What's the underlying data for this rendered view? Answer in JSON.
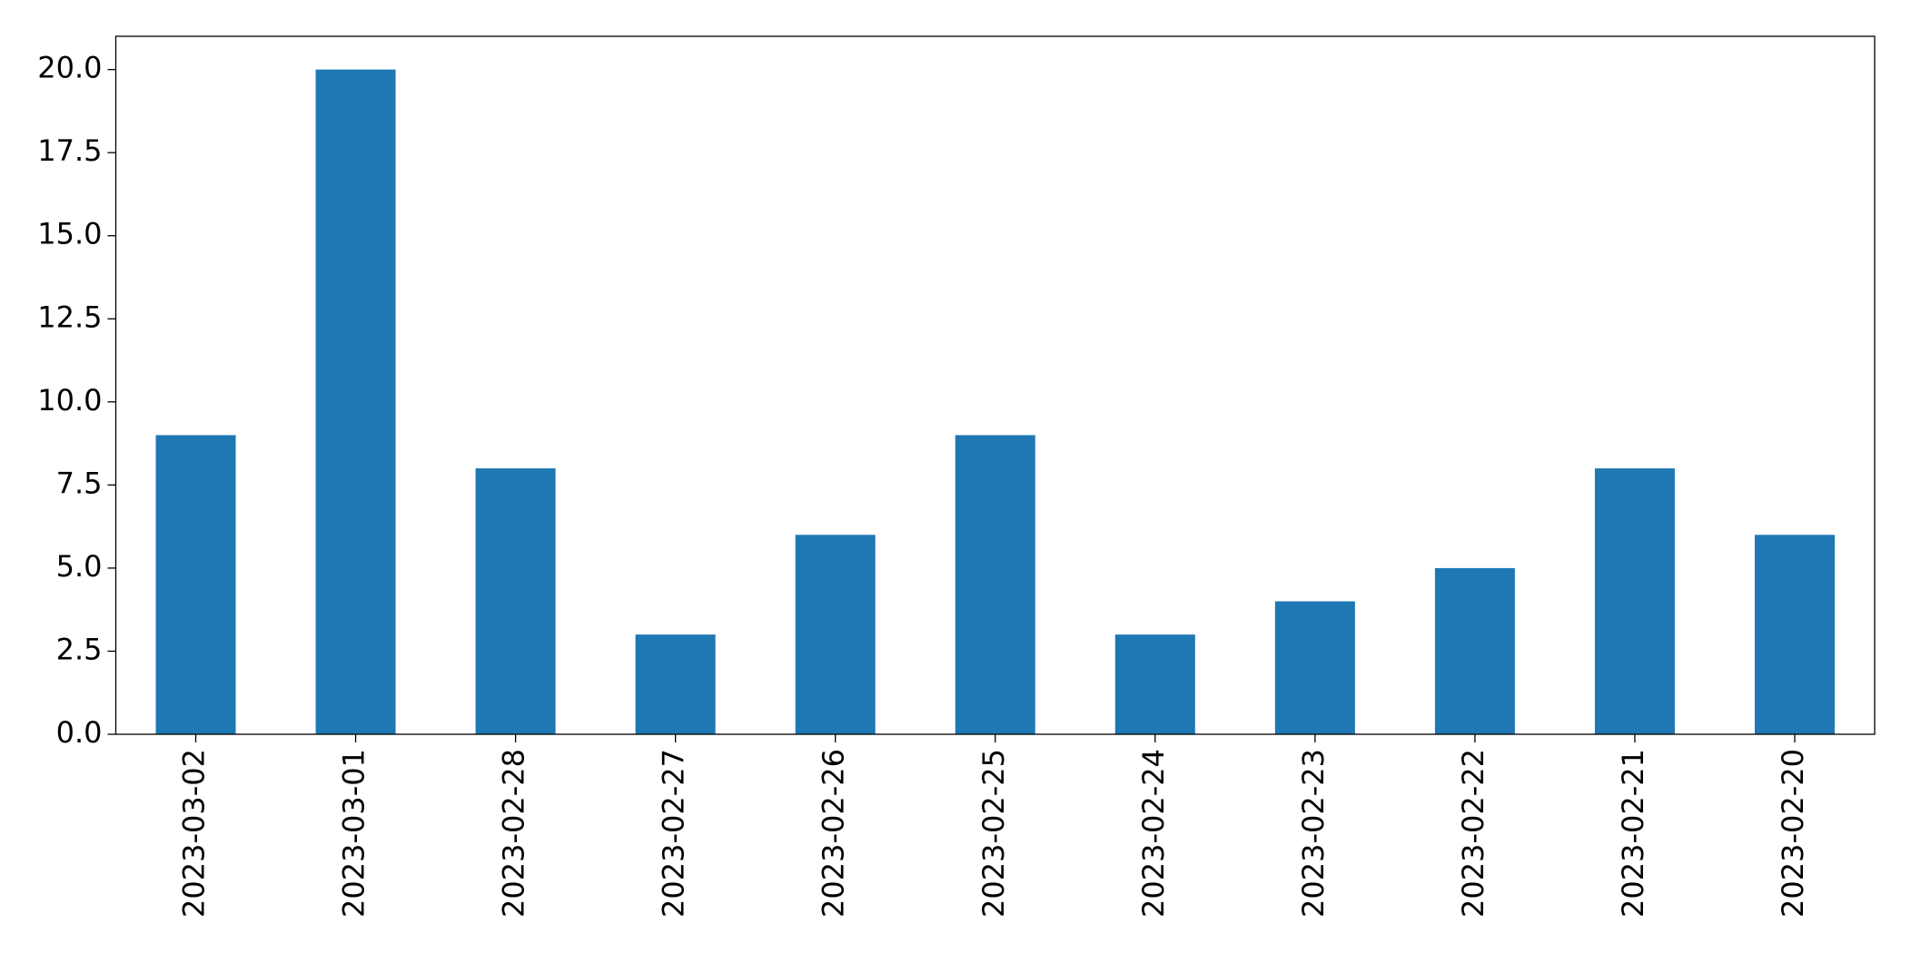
{
  "chart_data": {
    "type": "bar",
    "categories": [
      "2023-03-02",
      "2023-03-01",
      "2023-02-28",
      "2023-02-27",
      "2023-02-26",
      "2023-02-25",
      "2023-02-24",
      "2023-02-23",
      "2023-02-22",
      "2023-02-21",
      "2023-02-20"
    ],
    "values": [
      9,
      20,
      8,
      3,
      6,
      9,
      3,
      4,
      5,
      8,
      6
    ],
    "color": "#1f77b4",
    "ylim": [
      0,
      21
    ],
    "yticks": [
      {
        "value": 0,
        "label": "0.0"
      },
      2.5,
      {
        "value": 5,
        "label": "5.0"
      },
      7.5,
      {
        "value": 10,
        "label": "10.0"
      },
      12.5,
      {
        "value": 15,
        "label": "15.0"
      },
      17.5,
      {
        "value": 20,
        "label": "20.0"
      }
    ],
    "grid": false
  }
}
